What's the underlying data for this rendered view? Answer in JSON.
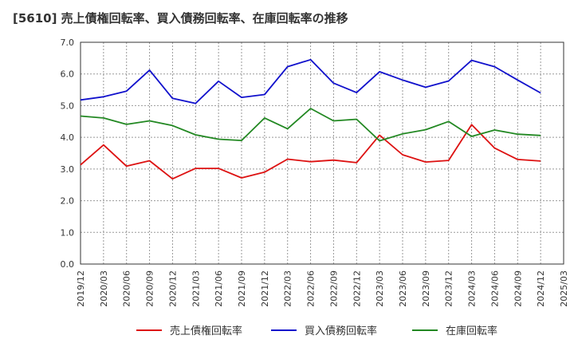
{
  "chart_data": {
    "type": "line",
    "title": "[5610]  売上債権回転率、買入債務回転率、在庫回転率の推移",
    "xlabel": "",
    "ylabel": "",
    "ylim": [
      0,
      7
    ],
    "yticks": [
      "0.0",
      "1.0",
      "2.0",
      "3.0",
      "4.0",
      "5.0",
      "6.0",
      "7.0"
    ],
    "grid": true,
    "legend_position": "bottom",
    "categories": [
      "2019/12",
      "2020/03",
      "2020/06",
      "2020/09",
      "2020/12",
      "2021/03",
      "2021/06",
      "2021/09",
      "2021/12",
      "2022/03",
      "2022/06",
      "2022/09",
      "2022/12",
      "2023/03",
      "2023/06",
      "2023/09",
      "2023/12",
      "2024/03",
      "2024/06",
      "2024/09",
      "2024/12",
      "2025/03"
    ],
    "series": [
      {
        "name": "売上債権回転率",
        "color": "#dd1111",
        "values": [
          3.13,
          3.76,
          3.09,
          3.26,
          2.69,
          3.02,
          3.02,
          2.72,
          2.9,
          3.31,
          3.23,
          3.28,
          3.2,
          4.07,
          3.45,
          3.22,
          3.27,
          4.4,
          3.66,
          3.3,
          3.25,
          null
        ]
      },
      {
        "name": "買入債務回転率",
        "color": "#1111cc",
        "values": [
          5.18,
          5.28,
          5.46,
          6.12,
          5.23,
          5.07,
          5.77,
          5.26,
          5.35,
          6.23,
          6.45,
          5.71,
          5.41,
          6.07,
          5.81,
          5.58,
          5.78,
          6.43,
          6.23,
          5.81,
          5.4,
          null
        ]
      },
      {
        "name": "在庫回転率",
        "color": "#228822",
        "values": [
          4.67,
          4.61,
          4.41,
          4.52,
          4.37,
          4.08,
          3.94,
          3.9,
          4.61,
          4.27,
          4.91,
          4.52,
          4.57,
          3.89,
          4.11,
          4.24,
          4.5,
          4.03,
          4.23,
          4.1,
          4.06,
          null
        ]
      }
    ]
  }
}
